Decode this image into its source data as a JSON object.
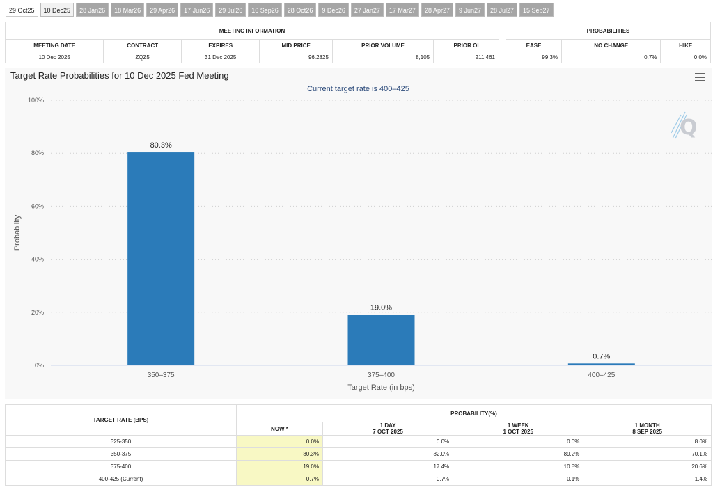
{
  "tabs": [
    "29 Oct25",
    "10 Dec25",
    "28 Jan26",
    "18 Mar26",
    "29 Apr26",
    "17 Jun26",
    "29 Jul26",
    "16 Sep26",
    "28 Oct26",
    "9 Dec26",
    "27 Jan27",
    "17 Mar27",
    "28 Apr27",
    "9 Jun27",
    "28 Jul27",
    "15 Sep27"
  ],
  "meeting": {
    "heading": "MEETING INFORMATION",
    "columns": [
      "MEETING DATE",
      "CONTRACT",
      "EXPIRES",
      "MID PRICE",
      "PRIOR VOLUME",
      "PRIOR OI"
    ],
    "values": [
      "10 Dec 2025",
      "ZQZ5",
      "31 Dec 2025",
      "96.2825",
      "8,105",
      "211,461"
    ]
  },
  "probabilities": {
    "heading": "PROBABILITIES",
    "columns": [
      "EASE",
      "NO CHANGE",
      "HIKE"
    ],
    "values": [
      "99.3%",
      "0.7%",
      "0.0%"
    ]
  },
  "chart_data": {
    "type": "bar",
    "title": "Target Rate Probabilities for 10 Dec 2025 Fed Meeting",
    "subtitle": "Current target rate is 400–425",
    "categories": [
      "350–375",
      "375–400",
      "400–425"
    ],
    "values": [
      80.3,
      19.0,
      0.7
    ],
    "data_labels": [
      "80.3%",
      "19.0%",
      "0.7%"
    ],
    "xlabel": "Target Rate (in bps)",
    "ylabel": "Probability",
    "ylim": [
      0,
      100
    ],
    "yticks": [
      "0%",
      "20%",
      "40%",
      "60%",
      "80%",
      "100%"
    ],
    "grid": true,
    "bar_color": "#2b7bb9"
  },
  "rates": {
    "col_header": "TARGET RATE (BPS)",
    "group_header": "PROBABILITY(%)",
    "periods": [
      {
        "line1": "NOW *",
        "line2": ""
      },
      {
        "line1": "1 DAY",
        "line2": "7 OCT 2025"
      },
      {
        "line1": "1 WEEK",
        "line2": "1 OCT 2025"
      },
      {
        "line1": "1 MONTH",
        "line2": "8 SEP 2025"
      }
    ],
    "rows": [
      {
        "rate": "325-350",
        "vals": [
          "0.0%",
          "0.0%",
          "0.0%",
          "8.0%"
        ]
      },
      {
        "rate": "350-375",
        "vals": [
          "80.3%",
          "82.0%",
          "89.2%",
          "70.1%"
        ]
      },
      {
        "rate": "375-400",
        "vals": [
          "19.0%",
          "17.4%",
          "10.8%",
          "20.6%"
        ]
      },
      {
        "rate": "400-425 (Current)",
        "vals": [
          "0.7%",
          "0.7%",
          "0.1%",
          "1.4%"
        ]
      }
    ]
  }
}
